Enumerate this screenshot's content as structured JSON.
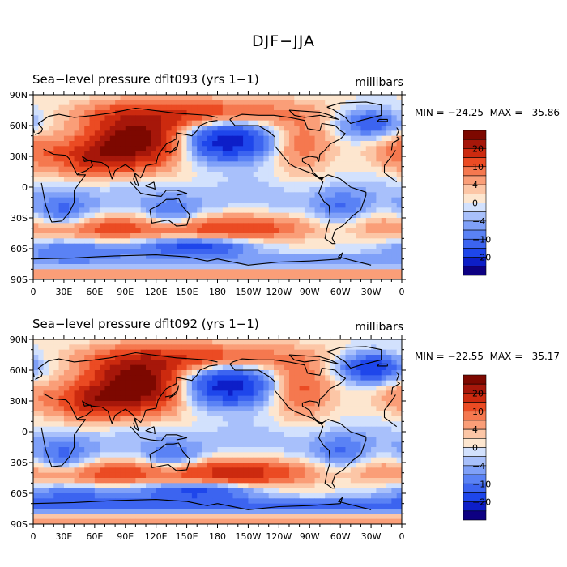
{
  "title": "DJF−JJA",
  "panels": [
    {
      "title": "Sea−level pressure  dflt093  (yrs 1−1)",
      "units": "millibars",
      "stats": "MIN = −24.25  MAX =   35.86"
    },
    {
      "title": "Sea−level pressure  dflt092  (yrs 1−1)",
      "units": "millibars",
      "stats": "MIN = −22.55  MAX =   35.17"
    }
  ],
  "chart_data": {
    "type": "heatmap",
    "variable": "Sea-level pressure",
    "units": "millibars",
    "x_ticks": [
      "0",
      "30E",
      "60E",
      "90E",
      "120E",
      "150E",
      "180",
      "150W",
      "120W",
      "90W",
      "60W",
      "30W",
      "0"
    ],
    "y_ticks": [
      "90N",
      "60N",
      "30N",
      "0",
      "30S",
      "60S",
      "90S"
    ],
    "xlim": [
      0,
      360
    ],
    "ylim": [
      -90,
      90
    ],
    "colorbar": {
      "levels": [
        -25,
        -20,
        -15,
        -10,
        -7,
        -4,
        -2,
        0,
        2,
        4,
        7,
        10,
        15,
        20,
        25
      ],
      "tick_labels": [
        "20",
        "10",
        "4",
        "0",
        "−4",
        "−10",
        "−20"
      ],
      "tick_values": [
        20,
        10,
        4,
        0,
        -4,
        -10,
        -20
      ],
      "colors": [
        "#0d0082",
        "#0d1ec8",
        "#1e46eb",
        "#3c64f0",
        "#5a82f5",
        "#7fa0f8",
        "#a8c0fb",
        "#d2e1fd",
        "#fde6cf",
        "#fcc6a6",
        "#fa9e78",
        "#f5784f",
        "#eb4b23",
        "#cc2a0f",
        "#a6170a",
        "#7d0800"
      ]
    },
    "fields": [
      {
        "name": "dflt093",
        "min": -24.25,
        "max": 35.86
      },
      {
        "name": "dflt092",
        "min": -22.55,
        "max": 35.17
      }
    ]
  }
}
